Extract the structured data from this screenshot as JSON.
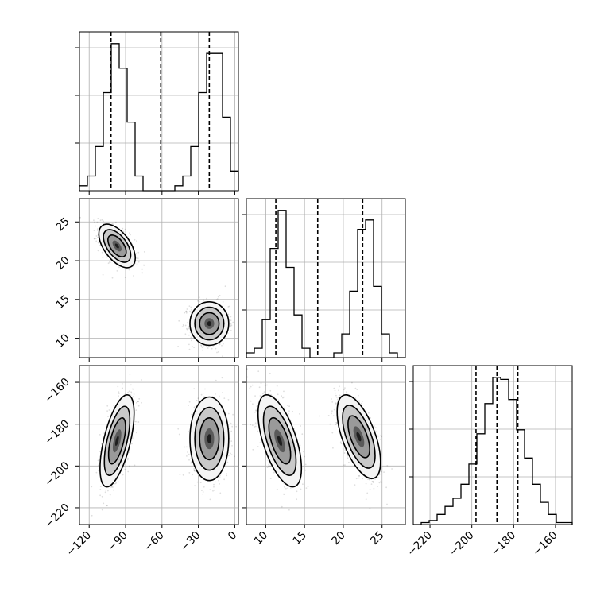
{
  "chart_data": {
    "type": "corner",
    "parameters": [
      {
        "id": "p0",
        "range": [
          -128,
          3
        ],
        "ticks": [
          -120,
          -90,
          -60,
          -30,
          0
        ],
        "tick_labels": [
          "−120",
          "−90",
          "−60",
          "−30",
          "0"
        ],
        "quantile_lines": [
          -102,
          -61,
          -21
        ],
        "histogram": {
          "bin_edges": [
            -128,
            -121.45,
            -114.9,
            -108.35,
            -101.8,
            -95.25,
            -88.7,
            -82.15,
            -75.6,
            -69.05,
            -62.5,
            -55.95,
            -49.4,
            -42.85,
            -36.3,
            -29.75,
            -23.2,
            -16.65,
            -10.1,
            -3.55,
            3
          ],
          "counts": [
            1,
            3,
            9,
            20,
            30,
            25,
            14,
            3,
            0,
            0,
            0,
            0,
            1,
            3,
            9,
            20,
            28,
            28,
            15,
            4
          ]
        }
      },
      {
        "id": "p1",
        "range": [
          7.5,
          28
        ],
        "ticks": [
          10,
          15,
          20,
          25
        ],
        "tick_labels": [
          "10",
          "15",
          "20",
          "25"
        ],
        "quantile_lines": [
          11.3,
          16.7,
          22.5
        ],
        "histogram": {
          "bin_edges": [
            7.5,
            8.525,
            9.55,
            10.575,
            11.6,
            12.625,
            13.65,
            14.675,
            15.7,
            16.725,
            17.75,
            18.775,
            19.8,
            20.825,
            21.85,
            22.875,
            23.9,
            24.925,
            25.95,
            26.975,
            28
          ],
          "counts": [
            1,
            2,
            8,
            23,
            31,
            19,
            9,
            2,
            0,
            0,
            0,
            1,
            5,
            14,
            27,
            29,
            15,
            5,
            1,
            0
          ]
        }
      },
      {
        "id": "p2",
        "range": [
          -228,
          -152
        ],
        "ticks": [
          -220,
          -200,
          -180,
          -160
        ],
        "tick_labels": [
          "−220",
          "−200",
          "−180",
          "−160"
        ],
        "quantile_lines": [
          -198,
          -188,
          -178
        ],
        "histogram": {
          "bin_edges": [
            -228,
            -224.2,
            -220.4,
            -216.6,
            -212.8,
            -209,
            -205.2,
            -201.4,
            -197.6,
            -193.8,
            -190,
            -186.2,
            -182.4,
            -178.6,
            -174.8,
            -171,
            -167.2,
            -163.4,
            -159.6,
            -155.8,
            -152
          ],
          "counts": [
            0,
            1,
            2,
            5,
            9,
            13,
            20,
            30,
            45,
            60,
            73,
            72,
            62,
            47,
            33,
            20,
            11,
            5,
            1,
            1
          ]
        }
      }
    ],
    "joint_panels": [
      {
        "x": "p0",
        "y": "p1",
        "yticks": [
          10,
          15,
          20,
          25
        ],
        "ytick_labels": [
          "10",
          "15",
          "20",
          "25"
        ],
        "modes": [
          {
            "cx": -97,
            "cy": 21.9,
            "sx": 7.5,
            "sy": 1.4,
            "rho": -0.55
          },
          {
            "cx": -21,
            "cy": 11.9,
            "sx": 8,
            "sy": 1.4,
            "rho": 0
          }
        ]
      },
      {
        "x": "p0",
        "y": "p2",
        "yticks": [
          -220,
          -200,
          -180,
          -160
        ],
        "ytick_labels": [
          "−220",
          "−200",
          "−180",
          "−160"
        ],
        "modes": [
          {
            "cx": -97,
            "cy": -188,
            "sx": 7,
            "sy": 11,
            "rho": 0.6
          },
          {
            "cx": -21,
            "cy": -187,
            "sx": 8,
            "sy": 10,
            "rho": 0
          }
        ]
      },
      {
        "x": "p1",
        "y": "p2",
        "modes": [
          {
            "cx": 11.8,
            "cy": -188,
            "sx": 1.4,
            "sy": 11,
            "rho": -0.6
          },
          {
            "cx": 22,
            "cy": -186,
            "sx": 1.4,
            "sy": 10,
            "rho": -0.6
          }
        ]
      }
    ],
    "grid": true,
    "title": "",
    "xlabel": "",
    "ylabel": ""
  }
}
